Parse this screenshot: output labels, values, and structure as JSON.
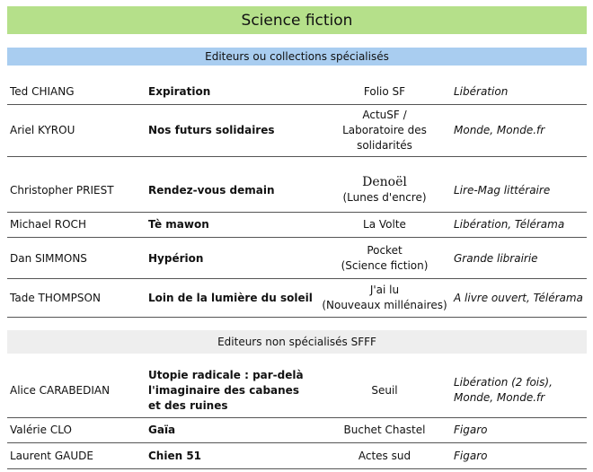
{
  "title": "Science fiction",
  "section1": "Editeurs ou collections spécialisés",
  "section2": "Editeurs non spécialisés SFFF",
  "rows1": [
    {
      "author": "Ted CHIANG",
      "book": "Expiration",
      "publisher": "Folio SF",
      "press": "Libération"
    },
    {
      "author": "Ariel KYROU",
      "book": "Nos futurs solidaires",
      "publisher": "ActuSF / Laboratoire des solidarités",
      "press": "Monde, Monde.fr"
    },
    {
      "author": "Christopher PRIEST",
      "book": "Rendez-vous demain",
      "publisher_line1": "Denoël",
      "publisher_line2": "(Lunes d'encre)",
      "press": "Lire-Mag littéraire"
    },
    {
      "author": "Michael ROCH",
      "book": "Tè mawon",
      "publisher": "La Volte",
      "press": "Libération, Télérama"
    },
    {
      "author": "Dan SIMMONS",
      "book": "Hypérion",
      "publisher_line1": "Pocket",
      "publisher_line2": "(Science fiction)",
      "press": "Grande librairie"
    },
    {
      "author": "Tade THOMPSON",
      "book": "Loin de la lumière du soleil",
      "publisher_line1": "J'ai lu",
      "publisher_line2": "(Nouveaux millénaires)",
      "press": "A livre ouvert, Télérama"
    }
  ],
  "rows2": [
    {
      "author": "Alice CARABEDIAN",
      "book": "Utopie radicale : par-delà l'imaginaire des cabanes et des ruines",
      "publisher": "Seuil",
      "press": "Libération (2 fois), Monde, Monde.fr"
    },
    {
      "author": "Valérie CLO",
      "book": "Gaïa",
      "publisher": "Buchet Chastel",
      "press": "Figaro"
    },
    {
      "author": "Laurent GAUDE",
      "book": "Chien 51",
      "publisher": "Actes sud",
      "press": "Figaro"
    }
  ]
}
